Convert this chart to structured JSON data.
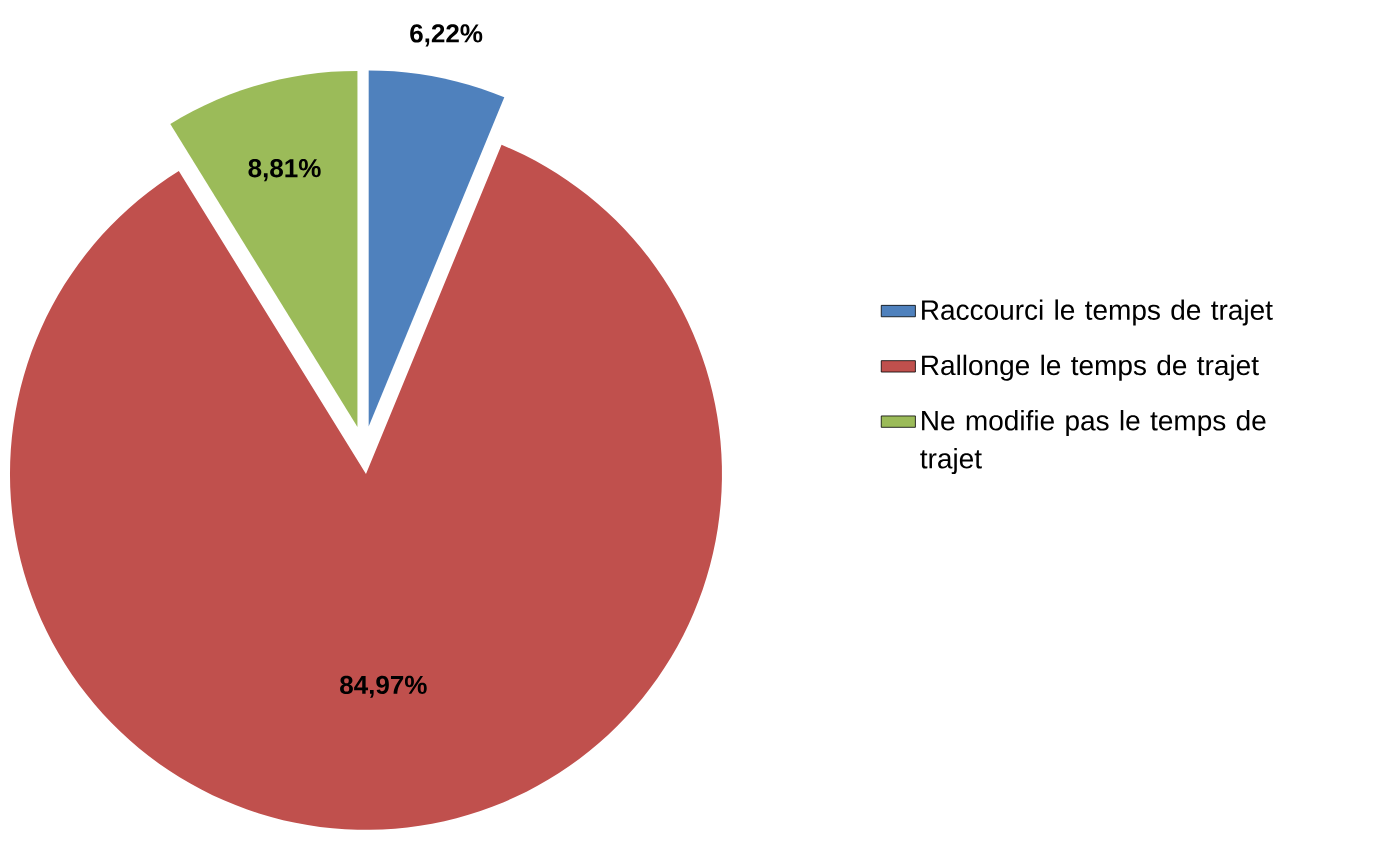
{
  "chart_data": {
    "type": "pie",
    "categories": [
      "Raccourci le temps de trajet",
      "Rallonge le temps de trajet",
      "Ne modifie pas le temps de trajet"
    ],
    "values": [
      6.22,
      84.97,
      8.81
    ],
    "colors": [
      "#4f81bd",
      "#c0504d",
      "#9bbb59"
    ],
    "value_labels": [
      "6,22%",
      "84,97%",
      "8,81%"
    ],
    "legend": "right"
  }
}
